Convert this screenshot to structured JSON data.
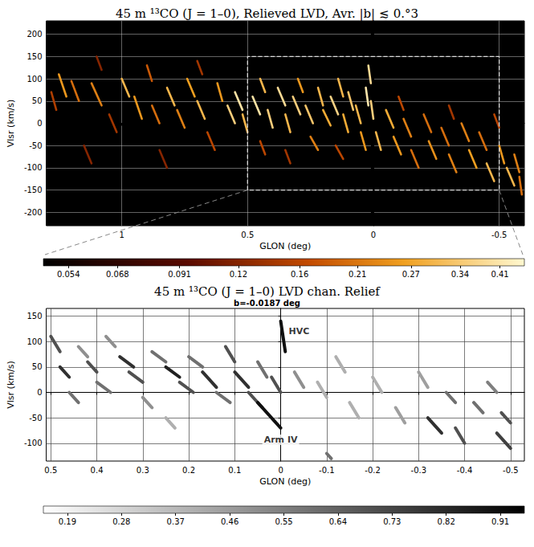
{
  "chart_data": [
    {
      "type": "lines",
      "title": "45 m ¹³CO (J = 1–0), Relieved LVD, Avr. |b| ≲ 0.°3",
      "x_label": "GLON (deg)",
      "y_label": "Vlsr (km/s)",
      "xlim": [
        1.3,
        -0.6
      ],
      "xticks": [
        1,
        0.5,
        0,
        -0.5
      ],
      "ylim": [
        -230,
        230
      ],
      "yticks": [
        -200,
        -150,
        -100,
        -50,
        0,
        50,
        100,
        150,
        200
      ],
      "grid": true,
      "color": "afmhot",
      "colorbar": {
        "range": [
          0.048,
          0.46
        ],
        "ticks": [
          0.054,
          0.068,
          0.091,
          0.12,
          0.16,
          0.21,
          0.27,
          0.34,
          0.41
        ],
        "log": true
      },
      "box": {
        "xlim": [
          0.5,
          -0.5
        ],
        "ylim": [
          -150,
          150
        ]
      },
      "streaks": [
        [
          1.25,
          110,
          1.22,
          60,
          0.25
        ],
        [
          1.2,
          95,
          1.17,
          50,
          0.2
        ],
        [
          1.28,
          70,
          1.26,
          30,
          0.15
        ],
        [
          1.12,
          90,
          1.08,
          40,
          0.22
        ],
        [
          1.05,
          20,
          1.02,
          -20,
          0.14
        ],
        [
          1.0,
          100,
          0.97,
          60,
          0.3
        ],
        [
          0.95,
          60,
          0.92,
          10,
          0.25
        ],
        [
          0.9,
          130,
          0.88,
          95,
          0.18
        ],
        [
          0.88,
          40,
          0.85,
          0,
          0.2
        ],
        [
          0.82,
          80,
          0.79,
          40,
          0.3
        ],
        [
          0.78,
          30,
          0.75,
          -10,
          0.22
        ],
        [
          0.74,
          100,
          0.71,
          60,
          0.26
        ],
        [
          0.7,
          50,
          0.67,
          10,
          0.3
        ],
        [
          0.66,
          -20,
          0.63,
          -60,
          0.16
        ],
        [
          0.62,
          90,
          0.6,
          50,
          0.25
        ],
        [
          0.58,
          40,
          0.55,
          0,
          0.35
        ],
        [
          0.55,
          70,
          0.52,
          30,
          0.4
        ],
        [
          0.52,
          20,
          0.5,
          -20,
          0.3
        ],
        [
          1.15,
          -50,
          1.12,
          -90,
          0.12
        ],
        [
          0.85,
          -60,
          0.82,
          -100,
          0.12
        ],
        [
          1.1,
          150,
          1.08,
          120,
          0.12
        ],
        [
          0.7,
          140,
          0.68,
          110,
          0.14
        ],
        [
          0.48,
          60,
          0.45,
          20,
          0.4
        ],
        [
          0.45,
          100,
          0.43,
          70,
          0.3
        ],
        [
          0.42,
          30,
          0.4,
          -10,
          0.35
        ],
        [
          0.38,
          80,
          0.35,
          40,
          0.38
        ],
        [
          0.35,
          20,
          0.33,
          -20,
          0.3
        ],
        [
          0.32,
          60,
          0.29,
          20,
          0.35
        ],
        [
          0.3,
          100,
          0.28,
          70,
          0.25
        ],
        [
          0.27,
          40,
          0.24,
          0,
          0.33
        ],
        [
          0.25,
          -30,
          0.22,
          -60,
          0.22
        ],
        [
          0.22,
          80,
          0.2,
          40,
          0.3
        ],
        [
          0.2,
          30,
          0.17,
          -5,
          0.28
        ],
        [
          0.17,
          60,
          0.14,
          20,
          0.36
        ],
        [
          0.14,
          100,
          0.12,
          60,
          0.3
        ],
        [
          0.12,
          20,
          0.1,
          -20,
          0.28
        ],
        [
          0.1,
          70,
          0.08,
          30,
          0.33
        ],
        [
          0.07,
          40,
          0.05,
          0,
          0.3
        ],
        [
          0.05,
          -20,
          0.03,
          -60,
          0.25
        ],
        [
          0.03,
          80,
          0.02,
          40,
          0.41
        ],
        [
          0.02,
          130,
          0.01,
          90,
          0.38
        ],
        [
          0.01,
          50,
          0.0,
          10,
          0.35
        ],
        [
          -0.01,
          -20,
          -0.03,
          -60,
          0.3
        ],
        [
          0.15,
          -50,
          0.12,
          -80,
          0.16
        ],
        [
          0.35,
          -60,
          0.33,
          -90,
          0.14
        ],
        [
          0.45,
          -40,
          0.43,
          -70,
          0.16
        ],
        [
          -0.05,
          30,
          -0.08,
          -10,
          0.28
        ],
        [
          -0.08,
          -30,
          -0.11,
          -70,
          0.25
        ],
        [
          -0.12,
          10,
          -0.15,
          -30,
          0.22
        ],
        [
          -0.15,
          -60,
          -0.18,
          -100,
          0.2
        ],
        [
          -0.2,
          20,
          -0.23,
          -20,
          0.2
        ],
        [
          -0.22,
          -40,
          -0.25,
          -80,
          0.24
        ],
        [
          -0.27,
          -10,
          -0.3,
          -50,
          0.2
        ],
        [
          -0.3,
          -70,
          -0.33,
          -110,
          0.22
        ],
        [
          -0.35,
          0,
          -0.38,
          -40,
          0.22
        ],
        [
          -0.38,
          -60,
          -0.41,
          -100,
          0.26
        ],
        [
          -0.42,
          -20,
          -0.45,
          -60,
          0.2
        ],
        [
          -0.45,
          -90,
          -0.48,
          -130,
          0.3
        ],
        [
          -0.5,
          -50,
          -0.52,
          -90,
          0.25
        ],
        [
          -0.53,
          -100,
          -0.56,
          -140,
          0.3
        ],
        [
          -0.56,
          -70,
          -0.58,
          -110,
          0.22
        ],
        [
          -0.58,
          -120,
          -0.59,
          -160,
          0.2
        ],
        [
          -0.1,
          60,
          -0.12,
          30,
          0.16
        ],
        [
          -0.3,
          40,
          -0.32,
          10,
          0.14
        ],
        [
          -0.48,
          20,
          -0.5,
          -10,
          0.16
        ]
      ]
    },
    {
      "type": "lines",
      "title": "45 m ¹³CO (J = 1–0) LVD chan. Relief",
      "subtitle": "b=-0.0187 deg",
      "x_label": "GLON (deg)",
      "y_label": "Vlsr (km/s)",
      "xlim": [
        0.51,
        -0.53
      ],
      "xticks": [
        0.5,
        0.4,
        0.3,
        0.2,
        0.1,
        0,
        -0.1,
        -0.2,
        -0.3,
        -0.4,
        -0.5
      ],
      "ylim": [
        -135,
        165
      ],
      "yticks": [
        -100,
        -50,
        0,
        50,
        100,
        150
      ],
      "grid": true,
      "color": "gray_r",
      "colorbar": {
        "range": [
          0.15,
          0.95
        ],
        "ticks": [
          0.19,
          0.28,
          0.37,
          0.46,
          0.55,
          0.64,
          0.73,
          0.82,
          0.91
        ]
      },
      "annotations": [
        {
          "text": "HVC",
          "x": -0.04,
          "y": 120
        },
        {
          "text": "Arm IV",
          "x": 0.0,
          "y": -93
        }
      ],
      "streaks": [
        [
          0.5,
          110,
          0.48,
          80,
          0.7
        ],
        [
          0.48,
          50,
          0.46,
          30,
          0.8
        ],
        [
          0.46,
          0,
          0.44,
          -20,
          0.6
        ],
        [
          0.44,
          90,
          0.42,
          70,
          0.5
        ],
        [
          0.42,
          60,
          0.4,
          40,
          0.7
        ],
        [
          0.4,
          20,
          0.37,
          0,
          0.6
        ],
        [
          0.38,
          110,
          0.36,
          90,
          0.5
        ],
        [
          0.35,
          70,
          0.32,
          50,
          0.8
        ],
        [
          0.33,
          40,
          0.3,
          20,
          0.7
        ],
        [
          0.3,
          -10,
          0.28,
          -30,
          0.5
        ],
        [
          0.28,
          80,
          0.25,
          60,
          0.6
        ],
        [
          0.25,
          50,
          0.22,
          30,
          0.85
        ],
        [
          0.22,
          20,
          0.19,
          0,
          0.7
        ],
        [
          0.2,
          70,
          0.17,
          50,
          0.6
        ],
        [
          0.17,
          40,
          0.14,
          10,
          0.8
        ],
        [
          0.14,
          0,
          0.11,
          -20,
          0.6
        ],
        [
          0.12,
          90,
          0.1,
          60,
          0.7
        ],
        [
          0.1,
          40,
          0.07,
          10,
          0.8
        ],
        [
          0.07,
          0,
          0.04,
          -30,
          0.7
        ],
        [
          0.05,
          -20,
          0.0,
          -70,
          0.9
        ],
        [
          0.05,
          60,
          0.03,
          30,
          0.6
        ],
        [
          0.0,
          140,
          -0.01,
          80,
          0.9
        ],
        [
          0.02,
          30,
          0.0,
          0,
          0.7
        ],
        [
          -0.03,
          40,
          -0.05,
          10,
          0.5
        ],
        [
          -0.08,
          20,
          -0.1,
          -10,
          0.4
        ],
        [
          -0.12,
          70,
          -0.14,
          40,
          0.4
        ],
        [
          -0.15,
          -20,
          -0.17,
          -50,
          0.4
        ],
        [
          -0.2,
          30,
          -0.22,
          0,
          0.4
        ],
        [
          -0.25,
          -30,
          -0.27,
          -60,
          0.45
        ],
        [
          -0.3,
          40,
          -0.32,
          10,
          0.45
        ],
        [
          -0.32,
          -50,
          -0.35,
          -80,
          0.8
        ],
        [
          -0.36,
          0,
          -0.38,
          -20,
          0.6
        ],
        [
          -0.38,
          -70,
          -0.4,
          -100,
          0.7
        ],
        [
          -0.42,
          -20,
          -0.44,
          -40,
          0.6
        ],
        [
          -0.45,
          20,
          -0.47,
          0,
          0.55
        ],
        [
          -0.47,
          -80,
          -0.5,
          -110,
          0.75
        ],
        [
          -0.1,
          -120,
          -0.11,
          -130,
          0.6
        ],
        [
          0.25,
          -50,
          0.23,
          -70,
          0.4
        ],
        [
          -0.48,
          -40,
          -0.5,
          -60,
          0.7
        ]
      ]
    }
  ]
}
